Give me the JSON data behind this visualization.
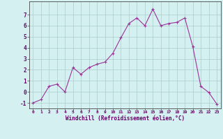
{
  "x": [
    0,
    1,
    2,
    3,
    4,
    5,
    6,
    7,
    8,
    9,
    10,
    11,
    12,
    13,
    14,
    15,
    16,
    17,
    18,
    19,
    20,
    21,
    22,
    23
  ],
  "y": [
    -1.0,
    -0.7,
    0.5,
    0.7,
    0.0,
    2.2,
    1.6,
    2.2,
    2.5,
    2.7,
    3.5,
    4.9,
    6.2,
    6.7,
    6.0,
    7.5,
    6.0,
    6.2,
    6.3,
    6.7,
    4.1,
    0.5,
    -0.05,
    -1.1
  ],
  "xlabel": "Windchill (Refroidissement éolien,°C)",
  "xlim": [
    -0.5,
    23.5
  ],
  "ylim": [
    -1.5,
    8.2
  ],
  "yticks": [
    -1,
    0,
    1,
    2,
    3,
    4,
    5,
    6,
    7
  ],
  "xticks": [
    0,
    1,
    2,
    3,
    4,
    5,
    6,
    7,
    8,
    9,
    10,
    11,
    12,
    13,
    14,
    15,
    16,
    17,
    18,
    19,
    20,
    21,
    22,
    23
  ],
  "line_color": "#993399",
  "marker": "+",
  "bg_color": "#d5f0f0",
  "grid_color": "#aacccc",
  "label_color": "#660066",
  "spine_color": "#666666",
  "tick_color": "#660066"
}
